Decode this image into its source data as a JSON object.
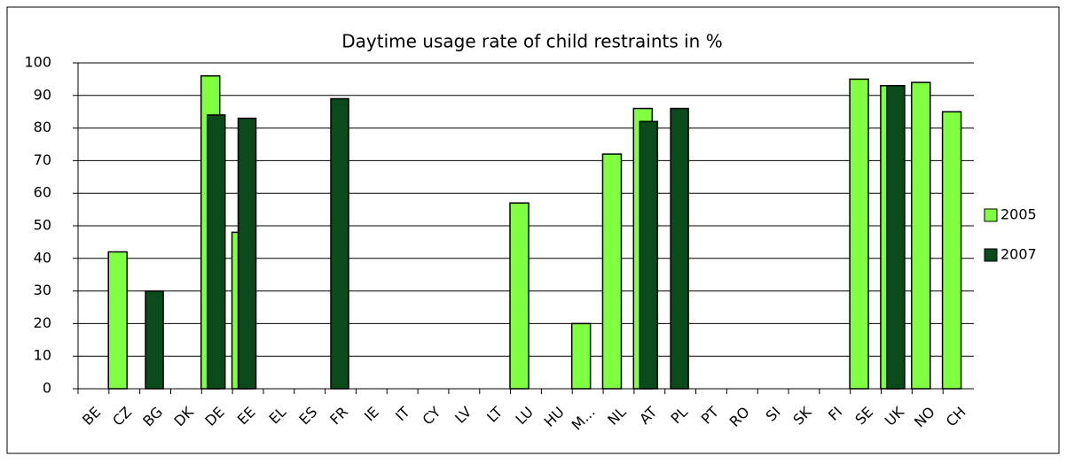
{
  "chart_data": {
    "type": "bar",
    "title": "Daytime usage rate of child restraints in %",
    "categories": [
      "BE",
      "CZ",
      "BG",
      "DK",
      "DE",
      "EE",
      "EL",
      "ES",
      "FR",
      "IE",
      "IT",
      "CY",
      "LV",
      "LT",
      "LU",
      "HU",
      "M...",
      "NL",
      "AT",
      "PL",
      "PT",
      "RO",
      "SI",
      "SK",
      "FI",
      "SE",
      "UK",
      "NO",
      "CH"
    ],
    "series": [
      {
        "name": "2005",
        "color": "#80ff40",
        "values": [
          null,
          42,
          null,
          null,
          96,
          48,
          null,
          null,
          null,
          null,
          null,
          null,
          null,
          null,
          57,
          null,
          20,
          72,
          86,
          null,
          null,
          null,
          null,
          null,
          null,
          95,
          93,
          94,
          85
        ]
      },
      {
        "name": "2007",
        "color": "#0b4a1a",
        "values": [
          null,
          null,
          30,
          null,
          84,
          83,
          null,
          null,
          89,
          null,
          null,
          null,
          null,
          null,
          null,
          null,
          null,
          null,
          82,
          86,
          null,
          null,
          null,
          null,
          null,
          null,
          93,
          null,
          null
        ]
      }
    ],
    "ylim": [
      0,
      100
    ],
    "yticks": [
      0,
      10,
      20,
      30,
      40,
      50,
      60,
      70,
      80,
      90,
      100
    ],
    "grid": true,
    "legend": "right"
  }
}
